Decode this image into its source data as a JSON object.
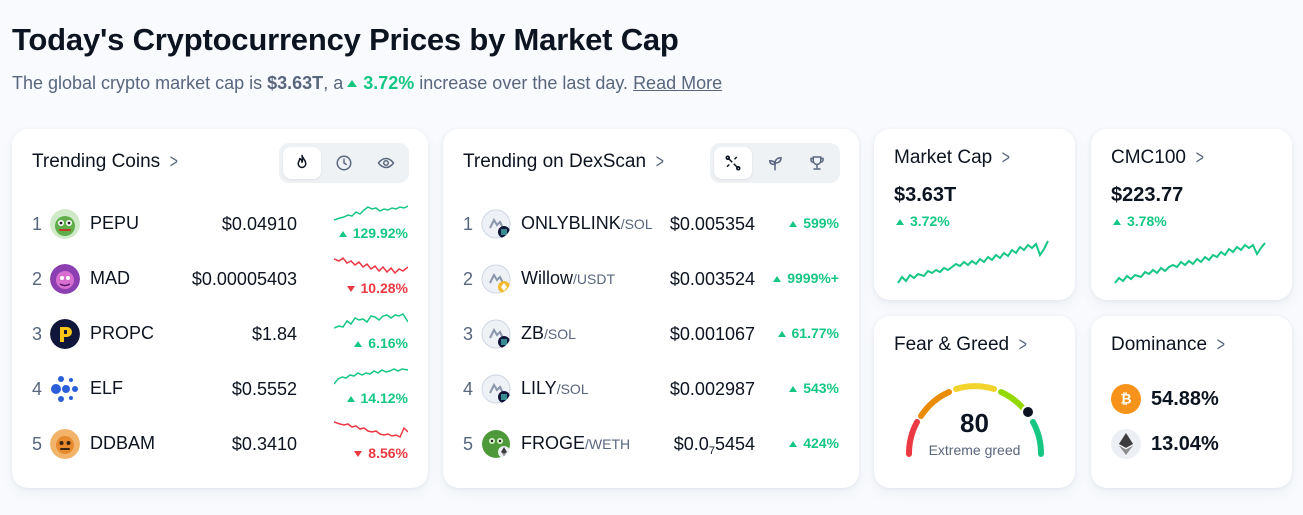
{
  "header": {
    "title": "Today's Cryptocurrency Prices by Market Cap",
    "subtitle_prefix": "The global crypto market cap is",
    "market_cap": "$3.63T",
    "subtitle_mid": ", a",
    "change": "3.72%",
    "subtitle_suffix": "increase over the last day.",
    "read_more": "Read More"
  },
  "trending_coins": {
    "title": "Trending Coins",
    "tabs": [
      "flame-icon",
      "clock-icon",
      "eye-icon"
    ],
    "rows": [
      {
        "rank": "1",
        "name": "PEPU",
        "price": "$0.04910",
        "change": "129.92%",
        "dir": "up",
        "logo_color": "#5fae4a"
      },
      {
        "rank": "2",
        "name": "MAD",
        "price": "$0.00005403",
        "change": "10.28%",
        "dir": "down",
        "logo_color": "#8c3fb0"
      },
      {
        "rank": "3",
        "name": "PROPC",
        "price": "$1.84",
        "change": "6.16%",
        "dir": "up",
        "logo_color": "#10163a"
      },
      {
        "rank": "4",
        "name": "ELF",
        "price": "$0.5552",
        "change": "14.12%",
        "dir": "up",
        "logo_color": "#2b5fd9"
      },
      {
        "rank": "5",
        "name": "DDBAM",
        "price": "$0.3410",
        "change": "8.56%",
        "dir": "down",
        "logo_color": "#e88a2e"
      }
    ]
  },
  "dexscan": {
    "title": "Trending on DexScan",
    "tabs": [
      "dex-icon",
      "sprout-icon",
      "trophy-icon"
    ],
    "rows": [
      {
        "rank": "1",
        "name": "ONLYBLINK",
        "chain": "/SOL",
        "price": "$0.005354",
        "change": "599%"
      },
      {
        "rank": "2",
        "name": "Willow",
        "chain": "/USDT",
        "price": "$0.003524",
        "change": "9999%+"
      },
      {
        "rank": "3",
        "name": "ZB",
        "chain": "/SOL",
        "price": "$0.001067",
        "change": "61.77%"
      },
      {
        "rank": "4",
        "name": "LILY",
        "chain": "/SOL",
        "price": "$0.002987",
        "change": "543%"
      },
      {
        "rank": "5",
        "name": "FROGE",
        "chain": "/WETH",
        "price_prefix": "$0.0",
        "price_sub": "7",
        "price_suffix": "5454",
        "change": "424%"
      }
    ]
  },
  "market_cap": {
    "title": "Market Cap",
    "value": "$3.63T",
    "change": "3.72%"
  },
  "cmc100": {
    "title": "CMC100",
    "value": "$223.77",
    "change": "3.78%"
  },
  "fear_greed": {
    "title": "Fear & Greed",
    "value": "80",
    "label": "Extreme greed"
  },
  "dominance": {
    "title": "Dominance",
    "items": [
      {
        "coin": "bitcoin-icon",
        "value": "54.88%",
        "color": "#f7931a"
      },
      {
        "coin": "ethereum-icon",
        "value": "13.04%",
        "color": "#eceff3"
      }
    ]
  },
  "colors": {
    "up": "#16c784",
    "down": "#ea3943",
    "text": "#0d1421",
    "muted": "#58667e"
  }
}
